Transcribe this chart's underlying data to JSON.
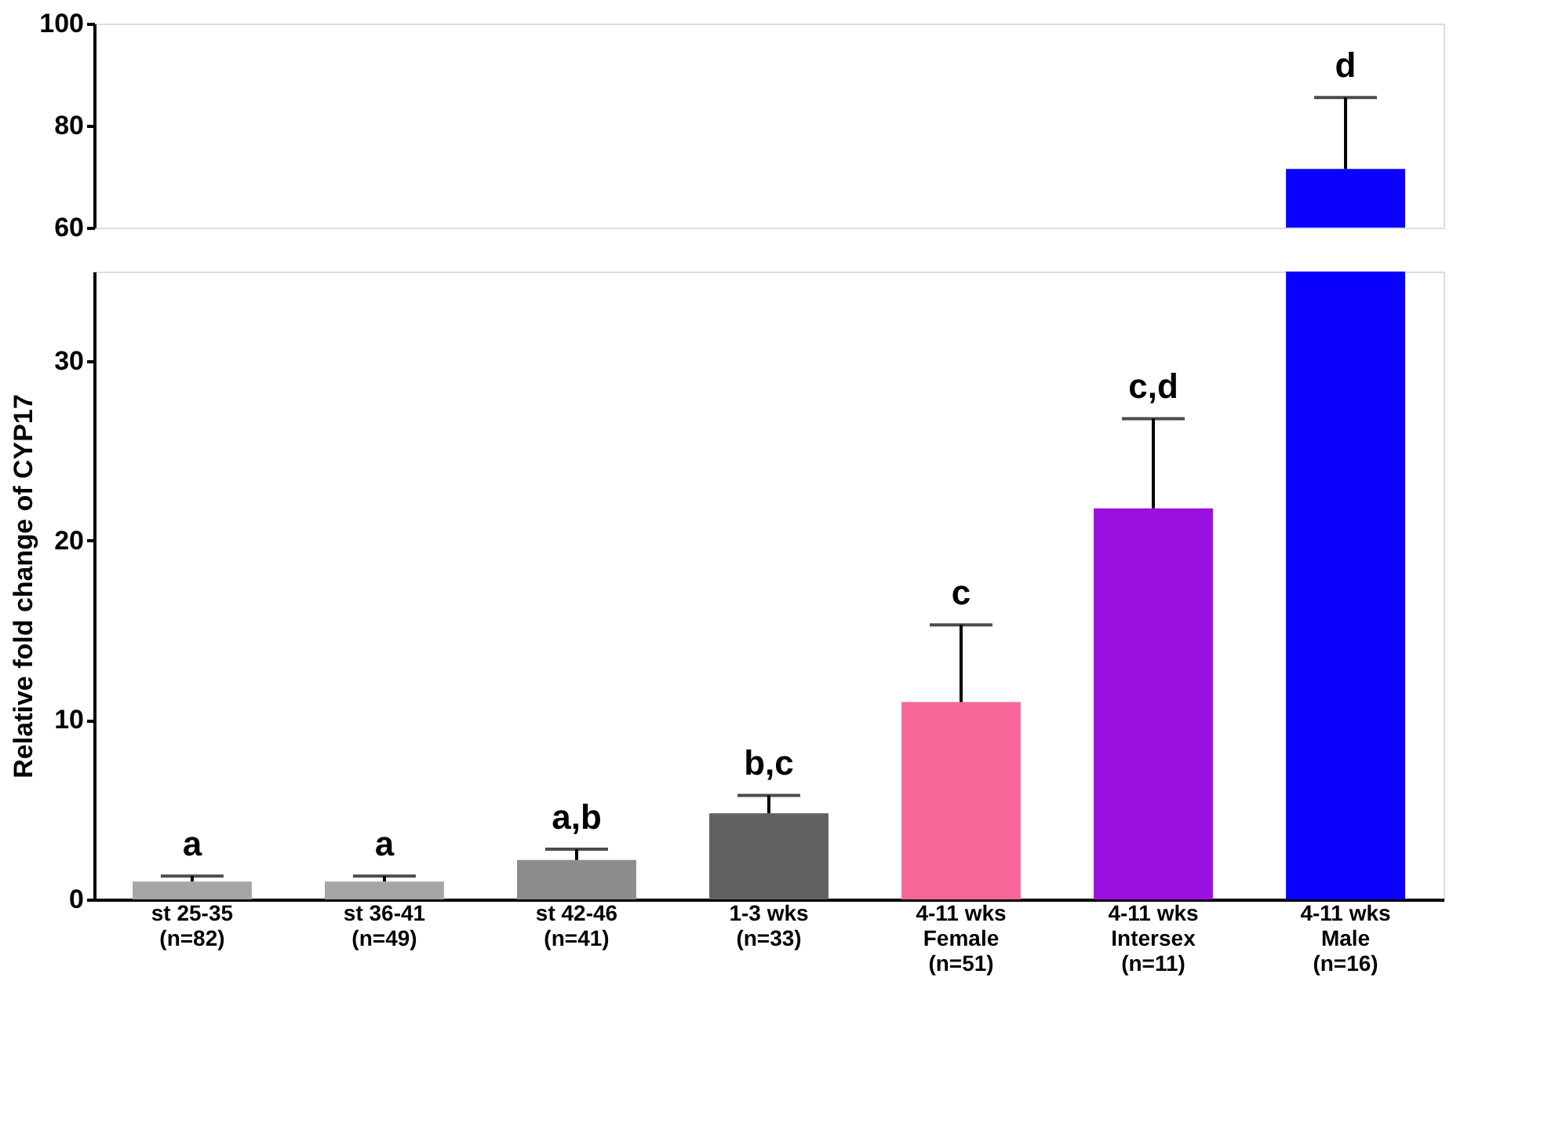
{
  "chart_data": [
    {
      "type": "bar",
      "values": [
        null,
        null,
        null,
        null,
        null,
        null,
        71.5
      ],
      "errors": [
        null,
        null,
        null,
        null,
        null,
        null,
        [
          71.5,
          85.5
        ]
      ],
      "colors": [
        "#a6a6a6",
        "#a6a6a6",
        "#8c8c8c",
        "#616161",
        "#f8679a",
        "#9a10e0",
        "#0a00ff"
      ],
      "ylim": [
        60,
        100
      ],
      "yticks": [
        60,
        80,
        100
      ],
      "grid": false,
      "tick_labels": "y",
      "annotations": [
        "d"
      ]
    },
    {
      "type": "bar",
      "categories": [
        "st 25-35\n(n=82)",
        "st 36-41\n(n=49)",
        "st 42-46\n(n=41)",
        "1-3 wks\n(n=33)",
        "4-11 wks\nFemale\n(n=51)",
        "4-11 wks\nIntersex\n(n=11)",
        "4-11 wks\nMale\n(n=16)"
      ],
      "values": [
        1.0,
        1.0,
        2.2,
        4.8,
        11.0,
        21.8,
        35
      ],
      "errors": [
        [
          1.0,
          1.3
        ],
        [
          1.0,
          1.3
        ],
        [
          2.2,
          2.8
        ],
        [
          4.8,
          5.8
        ],
        [
          11.0,
          15.3
        ],
        [
          21.8,
          26.8
        ],
        null
      ],
      "colors": [
        "#a6a6a6",
        "#a6a6a6",
        "#8c8c8c",
        "#616161",
        "#f8679a",
        "#9a10e0",
        "#0a00ff"
      ],
      "ylim": [
        0,
        35
      ],
      "yticks": [
        0,
        10,
        20,
        30
      ],
      "grid": false,
      "ylabel": "Relative fold change of CYP17",
      "annotations": [
        "a",
        "a",
        "a,b",
        "b,c",
        "c",
        "c,d"
      ]
    }
  ]
}
